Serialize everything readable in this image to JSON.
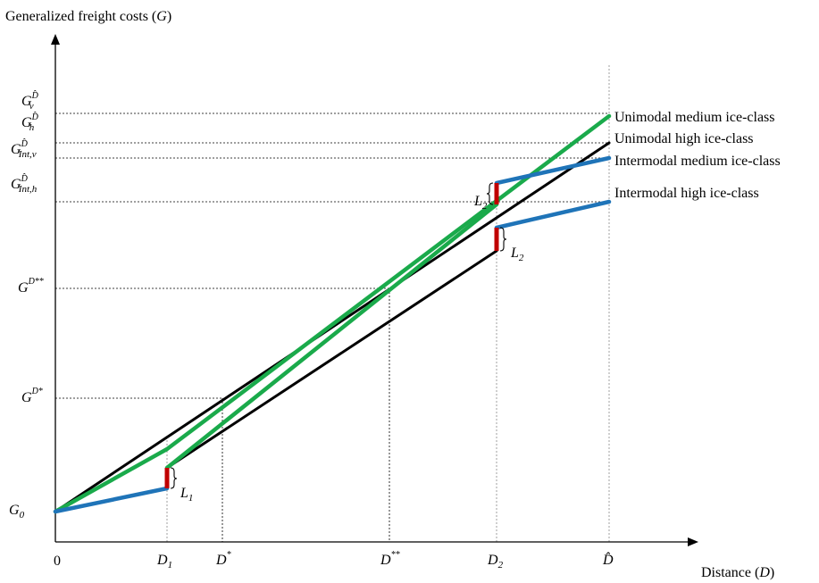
{
  "axes": {
    "y_title": "Generalized freight costs (",
    "y_title_sym": "G",
    "y_title_close": ")",
    "x_title": "Distance (",
    "x_title_sym": "D",
    "x_title_close": ")",
    "origin": "0"
  },
  "y_ticks": {
    "g0": {
      "base": "G",
      "sub": "0"
    },
    "gd_star": {
      "base": "G",
      "sup": "D*"
    },
    "gd_star2": {
      "base": "G",
      "sup": "D**"
    },
    "g_int_h": {
      "base": "G",
      "sup": "D̂",
      "sub": "Int,h"
    },
    "g_int_v": {
      "base": "G",
      "sup": "D̂",
      "sub": "Int,v"
    },
    "g_h": {
      "base": "G",
      "sup": "D̂",
      "sub": "h"
    },
    "g_v": {
      "base": "G",
      "sup": "D̂",
      "sub": "v"
    }
  },
  "x_ticks": {
    "d1": {
      "base": "D",
      "sub": "1"
    },
    "d_star": {
      "base": "D",
      "sup": "*"
    },
    "d_star2": {
      "base": "D",
      "sup": "**"
    },
    "d2": {
      "base": "D",
      "sub": "2"
    },
    "d_hat": {
      "base": "D̂"
    }
  },
  "legend": {
    "unimodal_medium": "Unimodal medium ice-class",
    "unimodal_high": "Unimodal high ice-class",
    "intermodal_medium": "Intermodal medium ice-class",
    "intermodal_high": "Intermodal high ice-class"
  },
  "annotations": {
    "l1": {
      "base": "L",
      "sub": "1"
    },
    "l2_upper": {
      "base": "L",
      "sub": "2"
    },
    "l2_lower": {
      "base": "L",
      "sub": "2"
    }
  },
  "colors": {
    "green": "#1aaa4b",
    "blue": "#1f74b8",
    "black": "#000000",
    "red": "#c00000",
    "axis": "#000000"
  }
}
